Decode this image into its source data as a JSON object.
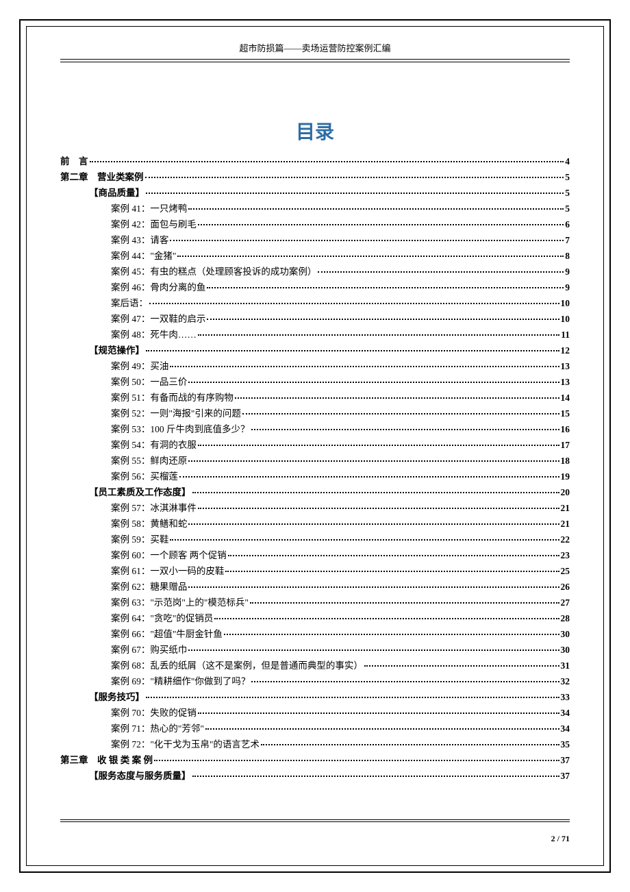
{
  "header": {
    "title": "超市防损篇——卖场运营防控案例汇编"
  },
  "toc_title": "目录",
  "page_number": "2 / 71",
  "entries": [
    {
      "indent": 0,
      "label": "前　言",
      "page": "4",
      "bold": true
    },
    {
      "indent": 0,
      "label": "第二章　营业类案例",
      "page": "5",
      "bold": true
    },
    {
      "indent": 1,
      "label": "【商品质量】",
      "page": "5",
      "bold": true
    },
    {
      "indent": 2,
      "label": "案例 41：一只烤鸭",
      "page": "5",
      "bold": false
    },
    {
      "indent": 2,
      "label": "案例 42：面包与刷毛",
      "page": "6",
      "bold": false
    },
    {
      "indent": 2,
      "label": "案例 43：请客",
      "page": "7",
      "bold": false
    },
    {
      "indent": 2,
      "label": "案例 44：\"金猪\"",
      "page": "8",
      "bold": false
    },
    {
      "indent": 2,
      "label": "案例 45：有虫的糕点（处理顾客投诉的成功案例）",
      "page": "9",
      "bold": false
    },
    {
      "indent": 2,
      "label": "案例 46：骨肉分离的鱼",
      "page": "9",
      "bold": false
    },
    {
      "indent": 2,
      "label": "案后语：",
      "page": "10",
      "bold": false
    },
    {
      "indent": 2,
      "label": "案例 47：一双鞋的启示",
      "page": "10",
      "bold": false
    },
    {
      "indent": 2,
      "label": "案例 48：死牛肉……",
      "page": "11",
      "bold": false
    },
    {
      "indent": 1,
      "label": "【规范操作】",
      "page": "12",
      "bold": true
    },
    {
      "indent": 2,
      "label": "案例 49：买油",
      "page": "13",
      "bold": false
    },
    {
      "indent": 2,
      "label": "案例 50：一品三价",
      "page": "13",
      "bold": false
    },
    {
      "indent": 2,
      "label": "案例 51：有备而战的有序购物",
      "page": "14",
      "bold": false
    },
    {
      "indent": 2,
      "label": "案例 52：一则\"海报\"引来的问题",
      "page": "15",
      "bold": false
    },
    {
      "indent": 2,
      "label": "案例 53：100 斤牛肉到底值多少？",
      "page": "16",
      "bold": false
    },
    {
      "indent": 2,
      "label": "案例 54：有洞的衣服",
      "page": "17",
      "bold": false
    },
    {
      "indent": 2,
      "label": "案例 55：鲜肉还原",
      "page": "18",
      "bold": false
    },
    {
      "indent": 2,
      "label": "案例 56：买榴莲",
      "page": "19",
      "bold": false
    },
    {
      "indent": 1,
      "label": "【员工素质及工作态度】",
      "page": "20",
      "bold": true
    },
    {
      "indent": 2,
      "label": "案例 57：冰淇淋事件",
      "page": "21",
      "bold": false
    },
    {
      "indent": 2,
      "label": "案例 58：黄鳝和蛇",
      "page": "21",
      "bold": false
    },
    {
      "indent": 2,
      "label": "案例 59：买鞋",
      "page": "22",
      "bold": false
    },
    {
      "indent": 2,
      "label": "案例 60：一个顾客 两个促销",
      "page": "23",
      "bold": false
    },
    {
      "indent": 2,
      "label": "案例 61：一双小一码的皮鞋",
      "page": "25",
      "bold": false
    },
    {
      "indent": 2,
      "label": "案例 62：糖果赠品",
      "page": "26",
      "bold": false
    },
    {
      "indent": 2,
      "label": "案例 63：\"示范岗\"上的\"模范标兵\"",
      "page": "27",
      "bold": false
    },
    {
      "indent": 2,
      "label": "案例 64：\"贪吃\"的促销员",
      "page": "28",
      "bold": false
    },
    {
      "indent": 2,
      "label": "案例 66：\"超值\"牛厨金针鱼",
      "page": "30",
      "bold": false
    },
    {
      "indent": 2,
      "label": "案例 67：购买纸巾",
      "page": "30",
      "bold": false
    },
    {
      "indent": 2,
      "label": "案例 68：乱丢的纸屑（这不是案例，但是普通而典型的事实）",
      "page": "31",
      "bold": false
    },
    {
      "indent": 2,
      "label": "案例 69：\"精耕细作\"你做到了吗？",
      "page": "32",
      "bold": false
    },
    {
      "indent": 1,
      "label": "【服务技巧】",
      "page": "33",
      "bold": true
    },
    {
      "indent": 2,
      "label": "案例 70：失败的促销",
      "page": "34",
      "bold": false
    },
    {
      "indent": 2,
      "label": "案例 71：热心的\"芳邻\"",
      "page": "34",
      "bold": false
    },
    {
      "indent": 2,
      "label": "案例 72：\"化干戈为玉帛\"的语言艺术",
      "page": "35",
      "bold": false
    },
    {
      "indent": 0,
      "label": "第三章　收 银 类 案 例",
      "page": "37",
      "bold": true
    },
    {
      "indent": 1,
      "label": "【服务态度与服务质量】",
      "page": "37",
      "bold": true
    }
  ],
  "styling": {
    "toc_title_color": "#2e6da4",
    "text_color": "#000000",
    "background_color": "#ffffff",
    "border_color": "#000000",
    "body_fontsize": 13.5,
    "title_fontsize": 28,
    "header_fontsize": 13
  }
}
